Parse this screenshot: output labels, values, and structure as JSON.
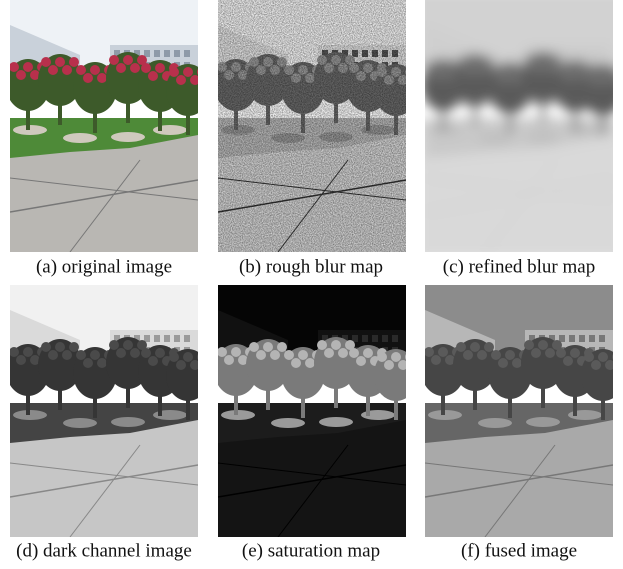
{
  "figure": {
    "panels": [
      {
        "caption": "(a) original image"
      },
      {
        "caption": "(b) rough blur map"
      },
      {
        "caption": "(c) refined blur map"
      },
      {
        "caption": "(d) dark channel image"
      },
      {
        "caption": "(e) saturation map"
      },
      {
        "caption": "(f) fused image"
      }
    ]
  }
}
